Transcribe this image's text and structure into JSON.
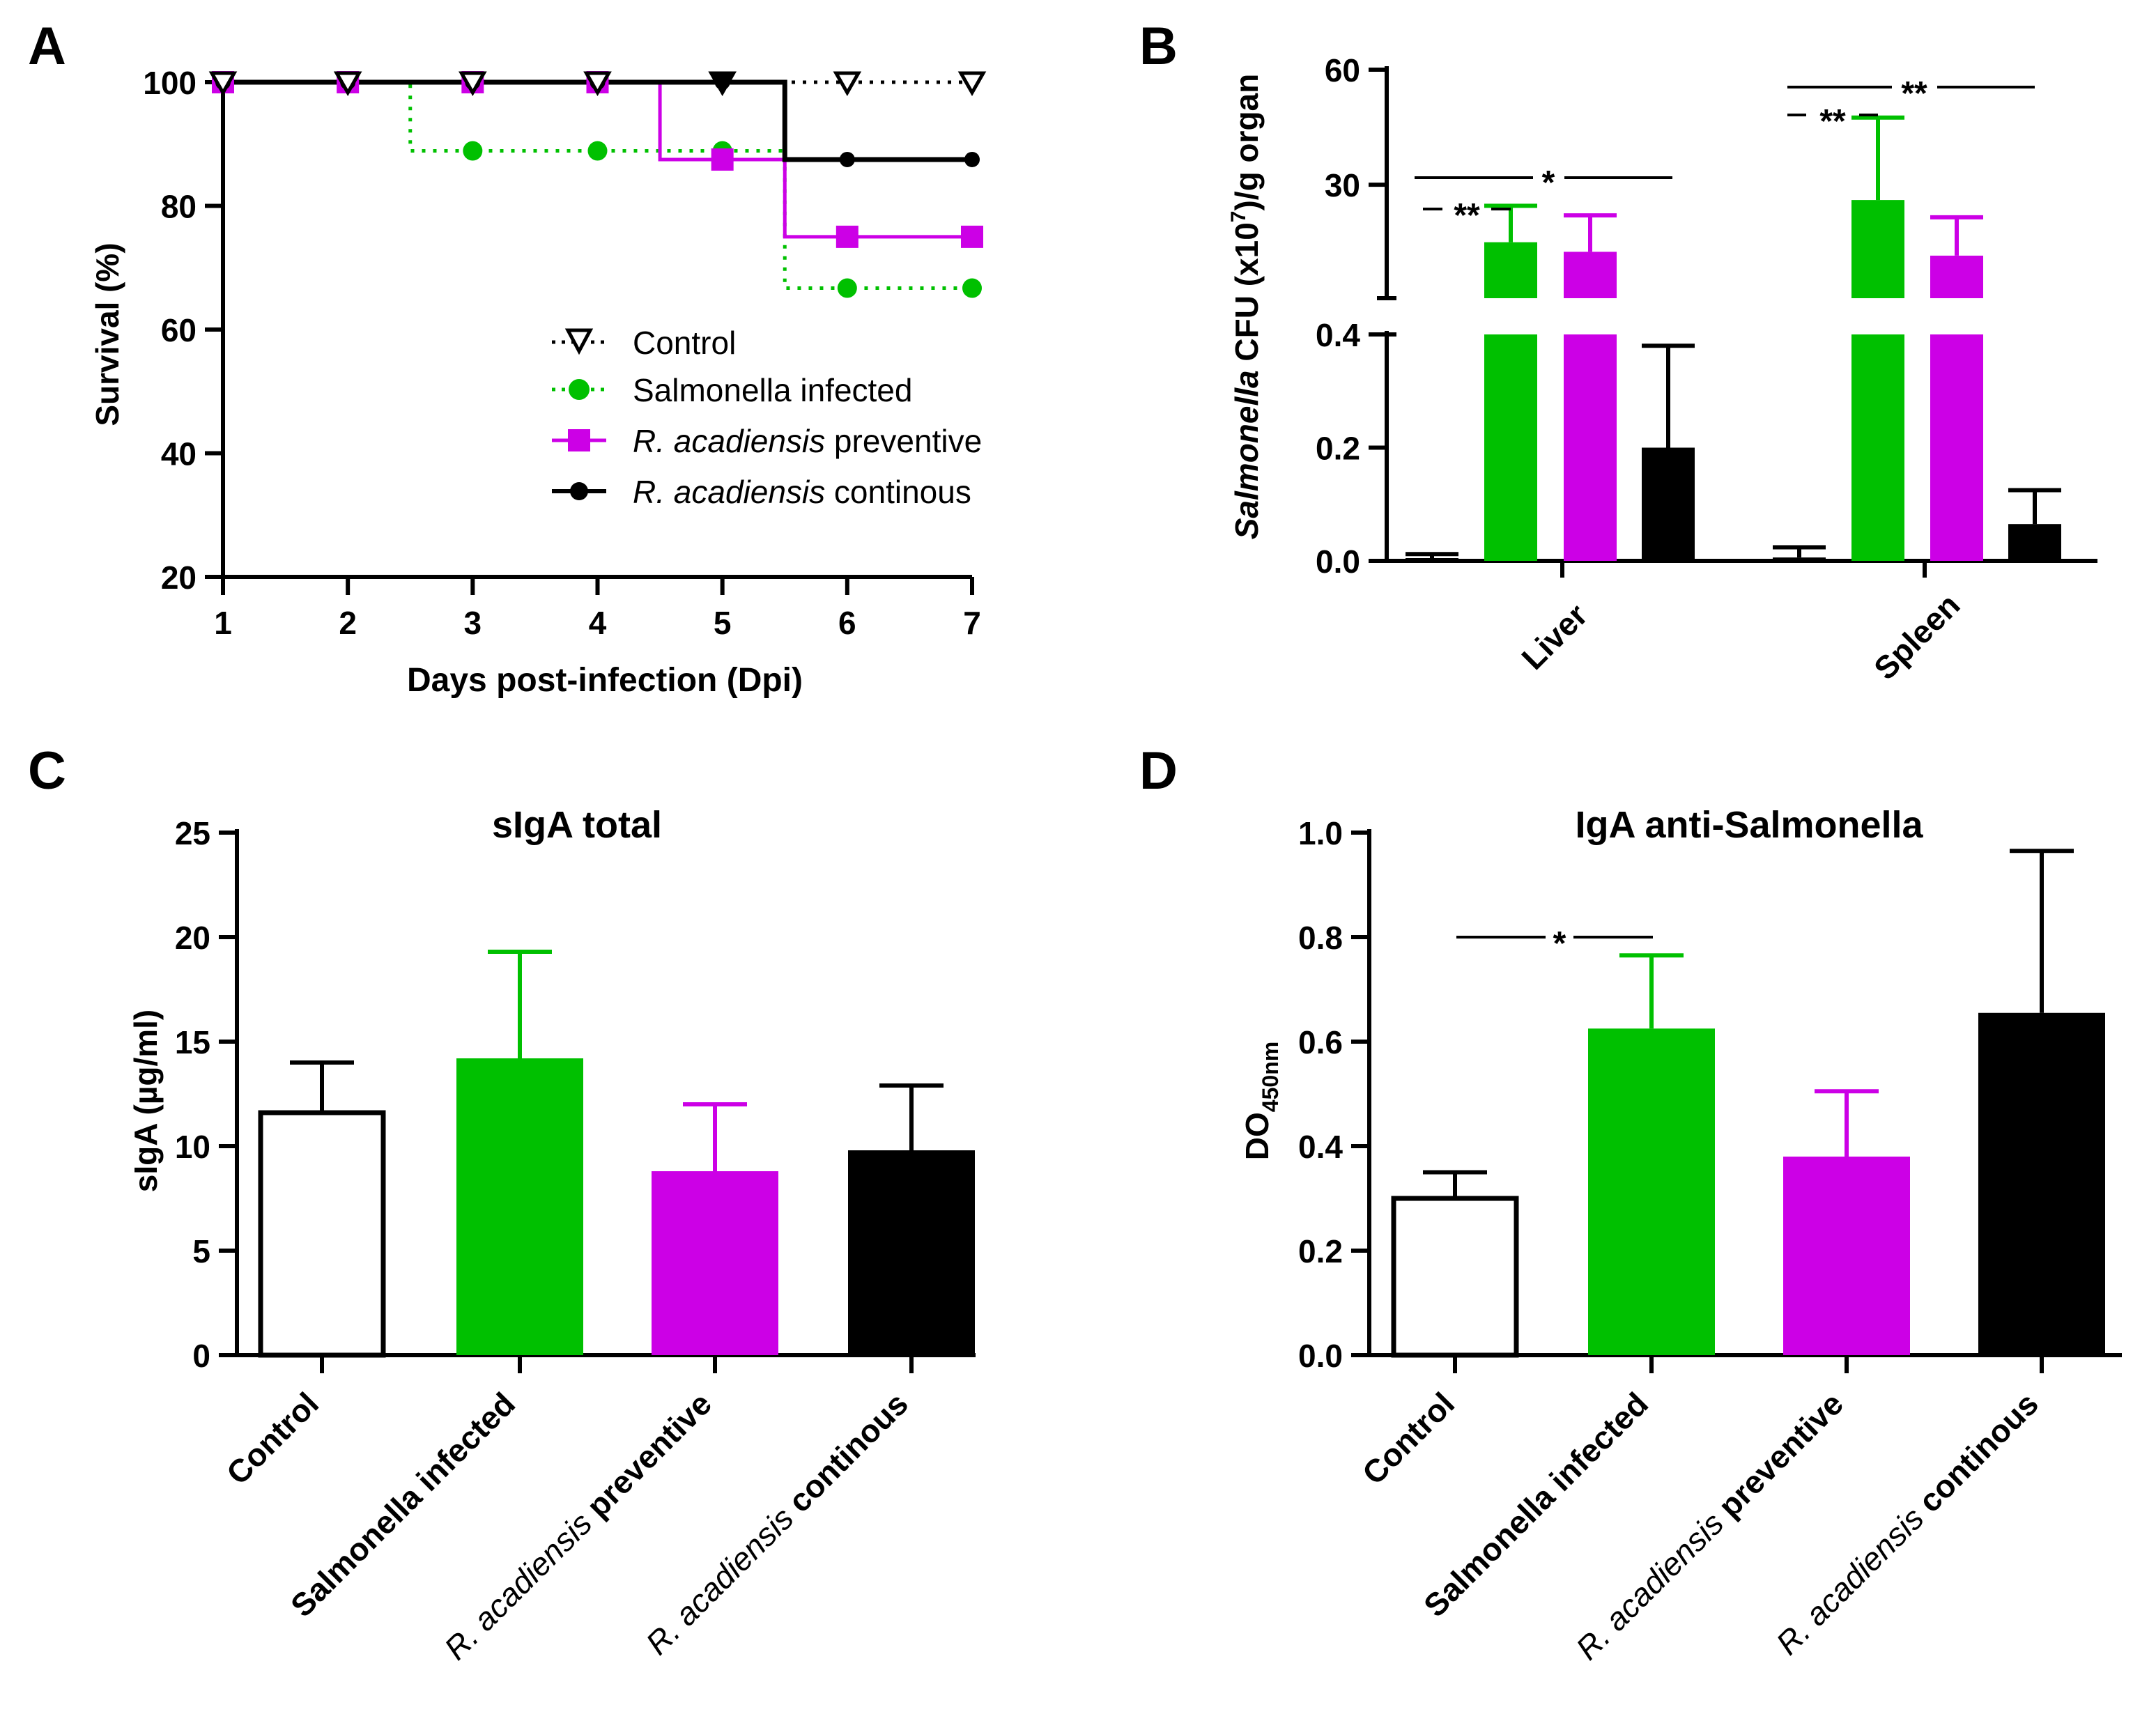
{
  "colors": {
    "control": "#000000",
    "infected": "#00c000",
    "preventive": "#cc00e6",
    "continuous": "#000000"
  },
  "chart_data": [
    {
      "panel": "A",
      "type": "line",
      "step": true,
      "xlabel": "Days post-infection (Dpi)",
      "ylabel": "Survival (%)",
      "xlim": [
        1,
        7
      ],
      "ylim": [
        20,
        100
      ],
      "xticks": [
        "1",
        "2",
        "3",
        "4",
        "5",
        "6",
        "7"
      ],
      "yticks": [
        "20",
        "40",
        "60",
        "80",
        "100"
      ],
      "series": [
        {
          "name": "Control",
          "x": [
            1,
            2,
            3,
            4,
            5,
            6,
            7
          ],
          "y": [
            100,
            100,
            100,
            100,
            100,
            100,
            100
          ]
        },
        {
          "name": "Salmonella infected",
          "x": [
            1,
            2,
            3,
            4,
            5,
            6,
            7
          ],
          "y": [
            100,
            100,
            88.9,
            88.9,
            88.9,
            66.7,
            66.7
          ]
        },
        {
          "name_italic": "R. acadiensis",
          "name_rest": " preventive",
          "x": [
            1,
            2,
            3,
            4,
            5,
            6,
            7
          ],
          "y": [
            100,
            100,
            100,
            100,
            87.5,
            75,
            75
          ]
        },
        {
          "name_italic": "R. acadiensis",
          "name_rest": " continous",
          "x": [
            1,
            2,
            3,
            4,
            5,
            6,
            7
          ],
          "y": [
            100,
            100,
            100,
            100,
            100,
            87.5,
            87.5
          ]
        }
      ]
    },
    {
      "panel": "B",
      "type": "bar",
      "broken_axis": true,
      "ylabel_italic": "Salmonella",
      "ylabel_rest": " CFU (x10",
      "ylabel_sup": "7",
      "ylabel_end": ")/g organ",
      "categories": [
        "Liver",
        "Spleen"
      ],
      "ylim_lower": [
        0,
        0.4
      ],
      "ylim_upper": [
        0.4,
        60
      ],
      "yticks_lower": [
        "0.0",
        "0.2",
        "0.4"
      ],
      "yticks_upper": [
        "30",
        "60"
      ],
      "series": [
        {
          "name": "Control",
          "values": [
            0.002,
            0.006
          ],
          "errors": [
            0.01,
            0.018
          ]
        },
        {
          "name": "Salmonella infected",
          "values": [
            15,
            26
          ],
          "errors": [
            9.5,
            21.5
          ]
        },
        {
          "name": "R. acadiensis preventive",
          "values": [
            12.5,
            11.5
          ],
          "errors": [
            9.5,
            10
          ]
        },
        {
          "name": "R. acadiensis continous",
          "values": [
            0.2,
            0.065
          ],
          "errors": [
            0.18,
            0.06
          ]
        }
      ],
      "annotations": [
        "*",
        "**",
        "**",
        "**"
      ]
    },
    {
      "panel": "C",
      "type": "bar",
      "title": "sIgA total",
      "ylabel": "sIgA (µg/ml)",
      "ylim": [
        0,
        25
      ],
      "yticks": [
        "0",
        "5",
        "10",
        "15",
        "20",
        "25"
      ],
      "categories": [
        "Control",
        "Salmonella infected",
        "R. acadiensis preventive",
        "R. acadiensis continous"
      ],
      "values": [
        11.6,
        14.2,
        8.8,
        9.8
      ],
      "errors": [
        2.4,
        5.1,
        3.2,
        3.1
      ]
    },
    {
      "panel": "D",
      "type": "bar",
      "title": "IgA anti-Salmonella",
      "ylabel": "DO",
      "ylabel_sub": "450nm",
      "ylim": [
        0,
        1.0
      ],
      "yticks": [
        "0.0",
        "0.2",
        "0.4",
        "0.6",
        "0.8",
        "1.0"
      ],
      "categories": [
        "Control",
        "Salmonella infected",
        "R. acadiensis preventive",
        "R. acadiensis continous"
      ],
      "values": [
        0.3,
        0.625,
        0.38,
        0.655
      ],
      "errors": [
        0.05,
        0.14,
        0.125,
        0.31
      ],
      "annotations": [
        "*"
      ]
    }
  ],
  "labels": {
    "panelA": "A",
    "panelB": "B",
    "panelC": "C",
    "panelD": "D",
    "legend": {
      "control": "Control",
      "infected": "Salmonella infected",
      "rac": "R. acadiensis",
      "preventive": " preventive",
      "continous": " continous"
    },
    "cats": {
      "control": "Control",
      "infected": "Salmonella infected",
      "rac": "R. acadiensis",
      "preventive": " preventive",
      "continous": " continous",
      "liver": "Liver",
      "spleen": "Spleen"
    },
    "sig": {
      "one": "*",
      "two": "**"
    }
  }
}
